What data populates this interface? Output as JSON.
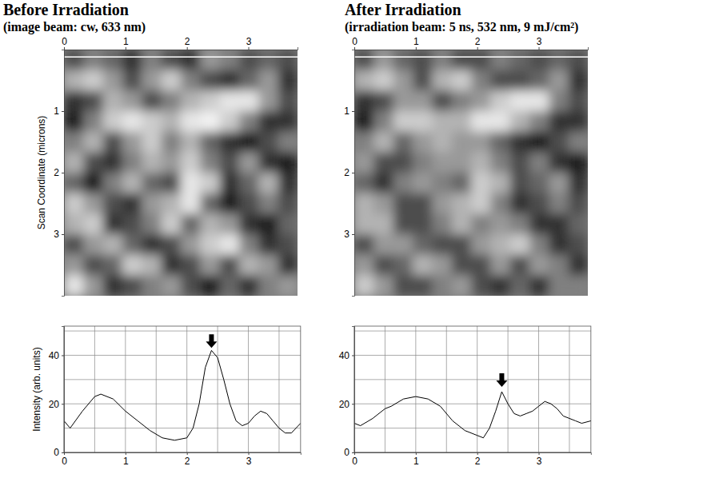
{
  "chart_data": [
    {
      "type": "heatmap",
      "title": "Before Irradiation",
      "subtitle": "(image beam: cw, 633 nm)",
      "y_label": "Scan Coordinate (microns)",
      "xlim": [
        0,
        3.8
      ],
      "ylim": [
        0,
        4.0
      ],
      "xticks": [
        0,
        1,
        2,
        3
      ],
      "yticks": [
        1,
        2,
        3
      ],
      "zlim": [
        0,
        1
      ],
      "scan_line_y": 0.12,
      "cells": [
        [
          0.3,
          0.5,
          0.4,
          0.2,
          0.5,
          0.3,
          0.2,
          0.6,
          0.5,
          0.3,
          0.4,
          0.3
        ],
        [
          0.7,
          0.8,
          0.6,
          0.3,
          0.6,
          0.8,
          0.5,
          0.3,
          0.2,
          0.4,
          0.6,
          0.2
        ],
        [
          0.2,
          0.3,
          0.7,
          0.6,
          0.3,
          0.5,
          0.7,
          0.8,
          0.9,
          0.9,
          0.6,
          0.3
        ],
        [
          0.1,
          0.5,
          0.8,
          0.9,
          0.8,
          0.7,
          0.9,
          0.95,
          0.8,
          0.5,
          0.2,
          0.2
        ],
        [
          0.5,
          0.7,
          0.3,
          0.6,
          0.8,
          0.5,
          0.7,
          0.4,
          0.2,
          0.1,
          0.3,
          0.5
        ],
        [
          0.7,
          0.3,
          0.2,
          0.5,
          0.7,
          0.6,
          0.8,
          0.5,
          0.3,
          0.6,
          0.2,
          0.1
        ],
        [
          0.4,
          0.1,
          0.5,
          0.7,
          0.4,
          0.3,
          0.9,
          0.8,
          0.2,
          0.4,
          0.7,
          0.2
        ],
        [
          0.8,
          0.6,
          0.3,
          0.2,
          0.6,
          0.7,
          0.9,
          0.4,
          0.1,
          0.3,
          0.5,
          0.3
        ],
        [
          0.7,
          0.8,
          0.2,
          0.3,
          0.5,
          0.8,
          0.4,
          0.7,
          0.6,
          0.2,
          0.1,
          0.4
        ],
        [
          0.3,
          0.6,
          0.7,
          0.4,
          0.2,
          0.3,
          0.6,
          0.8,
          0.9,
          0.5,
          0.2,
          0.3
        ],
        [
          0.6,
          0.3,
          0.4,
          0.8,
          0.7,
          0.2,
          0.3,
          0.6,
          0.3,
          0.7,
          0.6,
          0.2
        ],
        [
          0.9,
          0.6,
          0.2,
          0.3,
          0.5,
          0.6,
          0.3,
          0.1,
          0.4,
          0.2,
          0.5,
          0.6
        ]
      ]
    },
    {
      "type": "line",
      "y_label": "Intensity (arb. units)",
      "color": "#000000",
      "grid": true,
      "xlim": [
        0,
        3.85
      ],
      "ylim": [
        0,
        52
      ],
      "xticks": [
        0,
        1,
        2,
        3
      ],
      "yticks": [
        0,
        20,
        40
      ],
      "x_minor_ticks": [
        0.5,
        1.5,
        2.5,
        3.5
      ],
      "y_minor_ticks": [
        10,
        30,
        50
      ],
      "x": [
        0,
        0.1,
        0.3,
        0.5,
        0.6,
        0.8,
        1.0,
        1.2,
        1.4,
        1.6,
        1.8,
        2.0,
        2.1,
        2.2,
        2.3,
        2.4,
        2.5,
        2.6,
        2.7,
        2.8,
        2.9,
        3.0,
        3.1,
        3.2,
        3.3,
        3.4,
        3.5,
        3.6,
        3.7,
        3.85
      ],
      "values": [
        13,
        10,
        17,
        23,
        24,
        22,
        17,
        13,
        9,
        6,
        5,
        6,
        10,
        20,
        35,
        42,
        39,
        30,
        20,
        13,
        11,
        12,
        15,
        17,
        16,
        13,
        10,
        8,
        8,
        12
      ],
      "arrow": {
        "x": 2.4,
        "y": 43
      }
    },
    {
      "type": "heatmap",
      "title": "After Irradiation",
      "subtitle": "(irradiation beam: 5 ns, 532 nm, 9 mJ/cm²)",
      "xlim": [
        0,
        3.8
      ],
      "ylim": [
        0,
        4.0
      ],
      "xticks": [
        0,
        1,
        2,
        3
      ],
      "yticks": [
        1,
        2,
        3
      ],
      "zlim": [
        0,
        1
      ],
      "scan_line_y": 0.12,
      "cells": [
        [
          0.3,
          0.6,
          0.4,
          0.3,
          0.5,
          0.3,
          0.3,
          0.5,
          0.4,
          0.3,
          0.4,
          0.3
        ],
        [
          0.7,
          0.8,
          0.6,
          0.3,
          0.7,
          0.8,
          0.5,
          0.3,
          0.3,
          0.4,
          0.6,
          0.2
        ],
        [
          0.2,
          0.3,
          0.6,
          0.6,
          0.3,
          0.5,
          0.6,
          0.8,
          0.9,
          0.9,
          0.5,
          0.3
        ],
        [
          0.1,
          0.5,
          0.8,
          0.8,
          0.7,
          0.7,
          0.9,
          0.9,
          0.7,
          0.5,
          0.2,
          0.2
        ],
        [
          0.5,
          0.7,
          0.4,
          0.6,
          0.7,
          0.6,
          0.6,
          0.4,
          0.2,
          0.1,
          0.3,
          0.5
        ],
        [
          0.6,
          0.3,
          0.3,
          0.5,
          0.6,
          0.6,
          0.7,
          0.5,
          0.3,
          0.5,
          0.2,
          0.1
        ],
        [
          0.4,
          0.2,
          0.5,
          0.6,
          0.5,
          0.4,
          0.8,
          0.7,
          0.3,
          0.4,
          0.6,
          0.2
        ],
        [
          0.7,
          0.6,
          0.3,
          0.3,
          0.6,
          0.7,
          0.8,
          0.5,
          0.2,
          0.3,
          0.5,
          0.3
        ],
        [
          0.7,
          0.7,
          0.3,
          0.3,
          0.5,
          0.7,
          0.5,
          0.6,
          0.5,
          0.2,
          0.2,
          0.4
        ],
        [
          0.3,
          0.6,
          0.6,
          0.4,
          0.3,
          0.3,
          0.6,
          0.7,
          0.8,
          0.5,
          0.2,
          0.3
        ],
        [
          0.6,
          0.3,
          0.4,
          0.7,
          0.6,
          0.3,
          0.3,
          0.6,
          0.3,
          0.6,
          0.5,
          0.2
        ],
        [
          0.8,
          0.6,
          0.3,
          0.3,
          0.5,
          0.6,
          0.3,
          0.2,
          0.4,
          0.2,
          0.5,
          0.5
        ]
      ]
    },
    {
      "type": "line",
      "color": "#000000",
      "grid": true,
      "xlim": [
        0,
        3.85
      ],
      "ylim": [
        0,
        52
      ],
      "xticks": [
        0,
        1,
        2,
        3
      ],
      "yticks": [
        0,
        20,
        40
      ],
      "x_minor_ticks": [
        0.5,
        1.5,
        2.5,
        3.5
      ],
      "y_minor_ticks": [
        10,
        30,
        50
      ],
      "x": [
        0,
        0.1,
        0.3,
        0.5,
        0.6,
        0.8,
        1.0,
        1.2,
        1.4,
        1.6,
        1.8,
        2.0,
        2.1,
        2.2,
        2.3,
        2.4,
        2.5,
        2.6,
        2.7,
        2.8,
        2.9,
        3.0,
        3.1,
        3.2,
        3.3,
        3.4,
        3.5,
        3.6,
        3.7,
        3.85
      ],
      "values": [
        12,
        11,
        14,
        18,
        19,
        22,
        23,
        22,
        19,
        13,
        9,
        7,
        6,
        10,
        17,
        25,
        20,
        16,
        15,
        16,
        17,
        19,
        21,
        20,
        18,
        15,
        14,
        13,
        12,
        13
      ],
      "arrow": {
        "x": 2.4,
        "y": 27
      }
    }
  ]
}
